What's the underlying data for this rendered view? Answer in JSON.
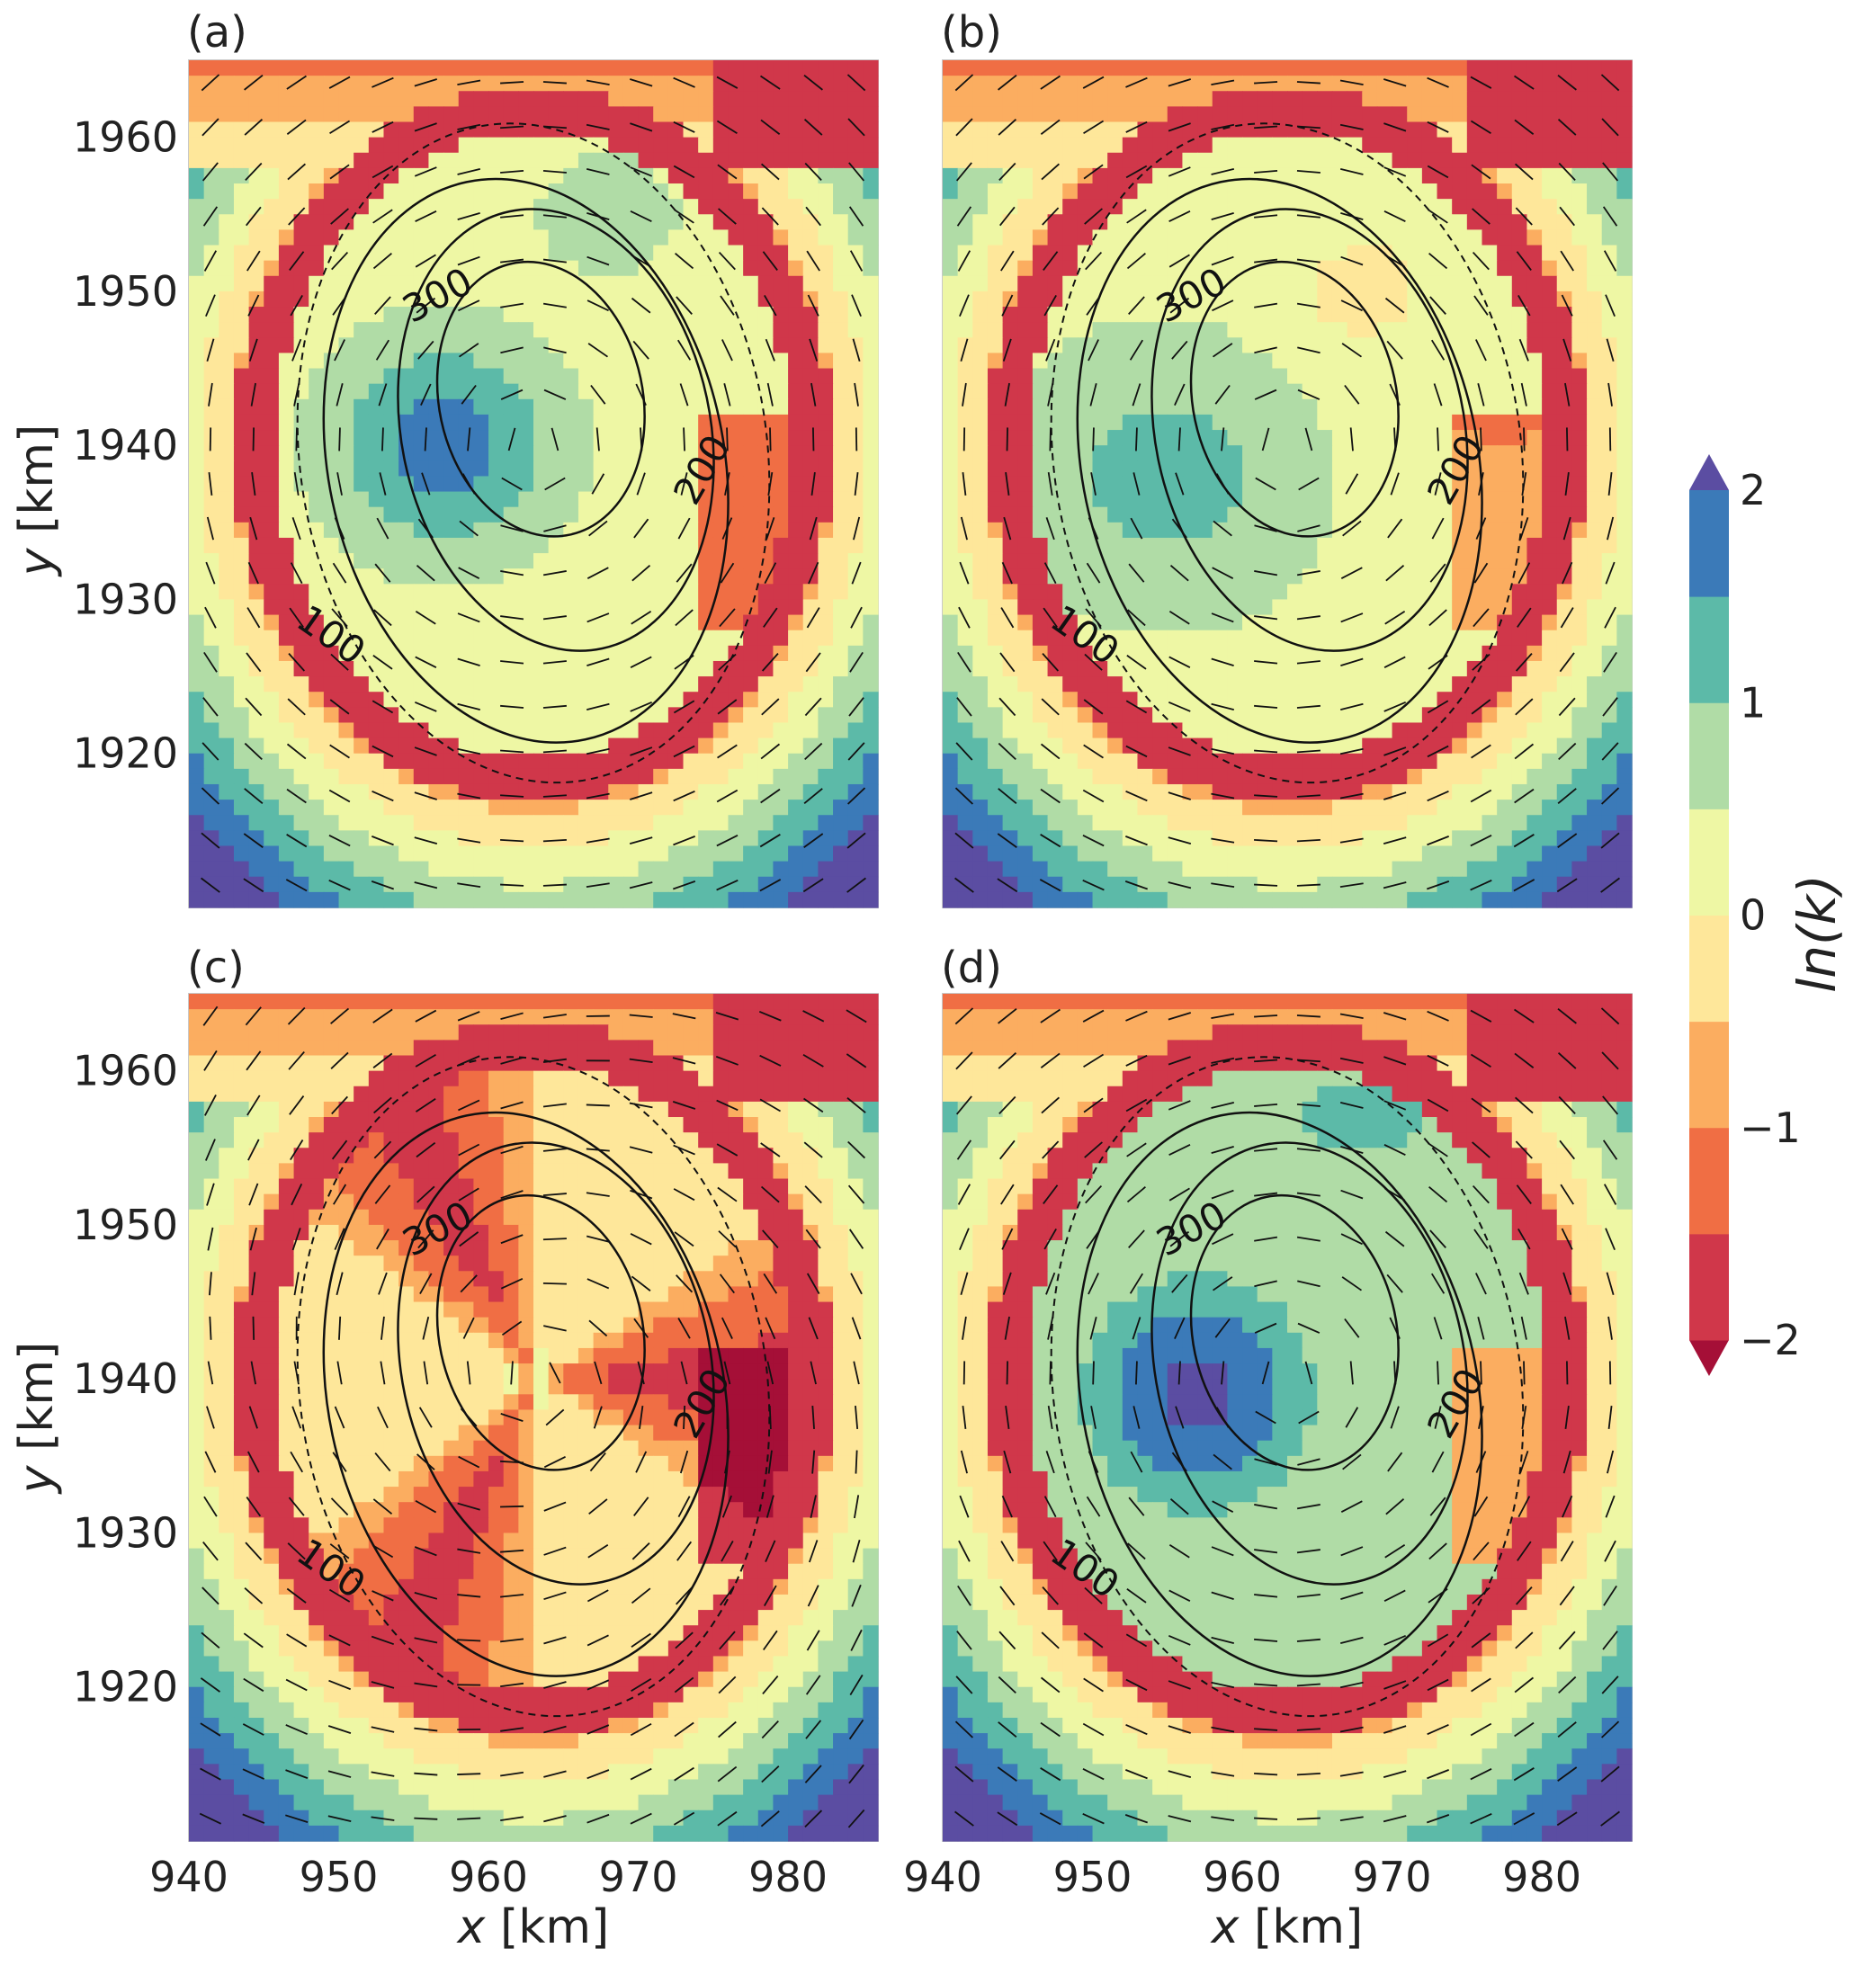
{
  "chart_data": {
    "type": "heatmap",
    "layout": "2x2 panels sharing axes and colorbar",
    "panels": [
      {
        "label": "(a)",
        "variant": "a"
      },
      {
        "label": "(b)",
        "variant": "b"
      },
      {
        "label": "(c)",
        "variant": "c"
      },
      {
        "label": "(d)",
        "variant": "d"
      }
    ],
    "x_axis": {
      "label_italic": "x",
      "label_unit": " [km]",
      "range": [
        940,
        986
      ],
      "ticks": [
        "940",
        "950",
        "960",
        "970",
        "980"
      ],
      "tick_values": [
        940,
        950,
        960,
        970,
        980
      ]
    },
    "y_axis": {
      "label_italic": "y",
      "label_unit": " [km]",
      "range": [
        1910,
        1965
      ],
      "ticks": [
        "1920",
        "1930",
        "1940",
        "1950",
        "1960"
      ],
      "tick_values": [
        1920,
        1930,
        1940,
        1950,
        1960
      ]
    },
    "colorbar": {
      "label": "ln(k)",
      "levels": [
        -2,
        -1.5,
        -1,
        -0.5,
        0,
        0.5,
        1,
        1.5,
        2
      ],
      "ticks": [
        "2",
        "1",
        "0",
        "−1",
        "−2"
      ],
      "tick_values": [
        2,
        1,
        0,
        -1,
        -2
      ],
      "extend": "both",
      "colors": [
        "#a50f37",
        "#d0374a",
        "#f06e44",
        "#fbad60",
        "#fee79a",
        "#eef7a4",
        "#b0dca6",
        "#5cbaa8",
        "#3b7ab8",
        "#5b4da2"
      ]
    },
    "contours": {
      "solid_levels": [
        "100",
        "200",
        "300"
      ],
      "dashed": "ice margin"
    },
    "grid": false
  }
}
